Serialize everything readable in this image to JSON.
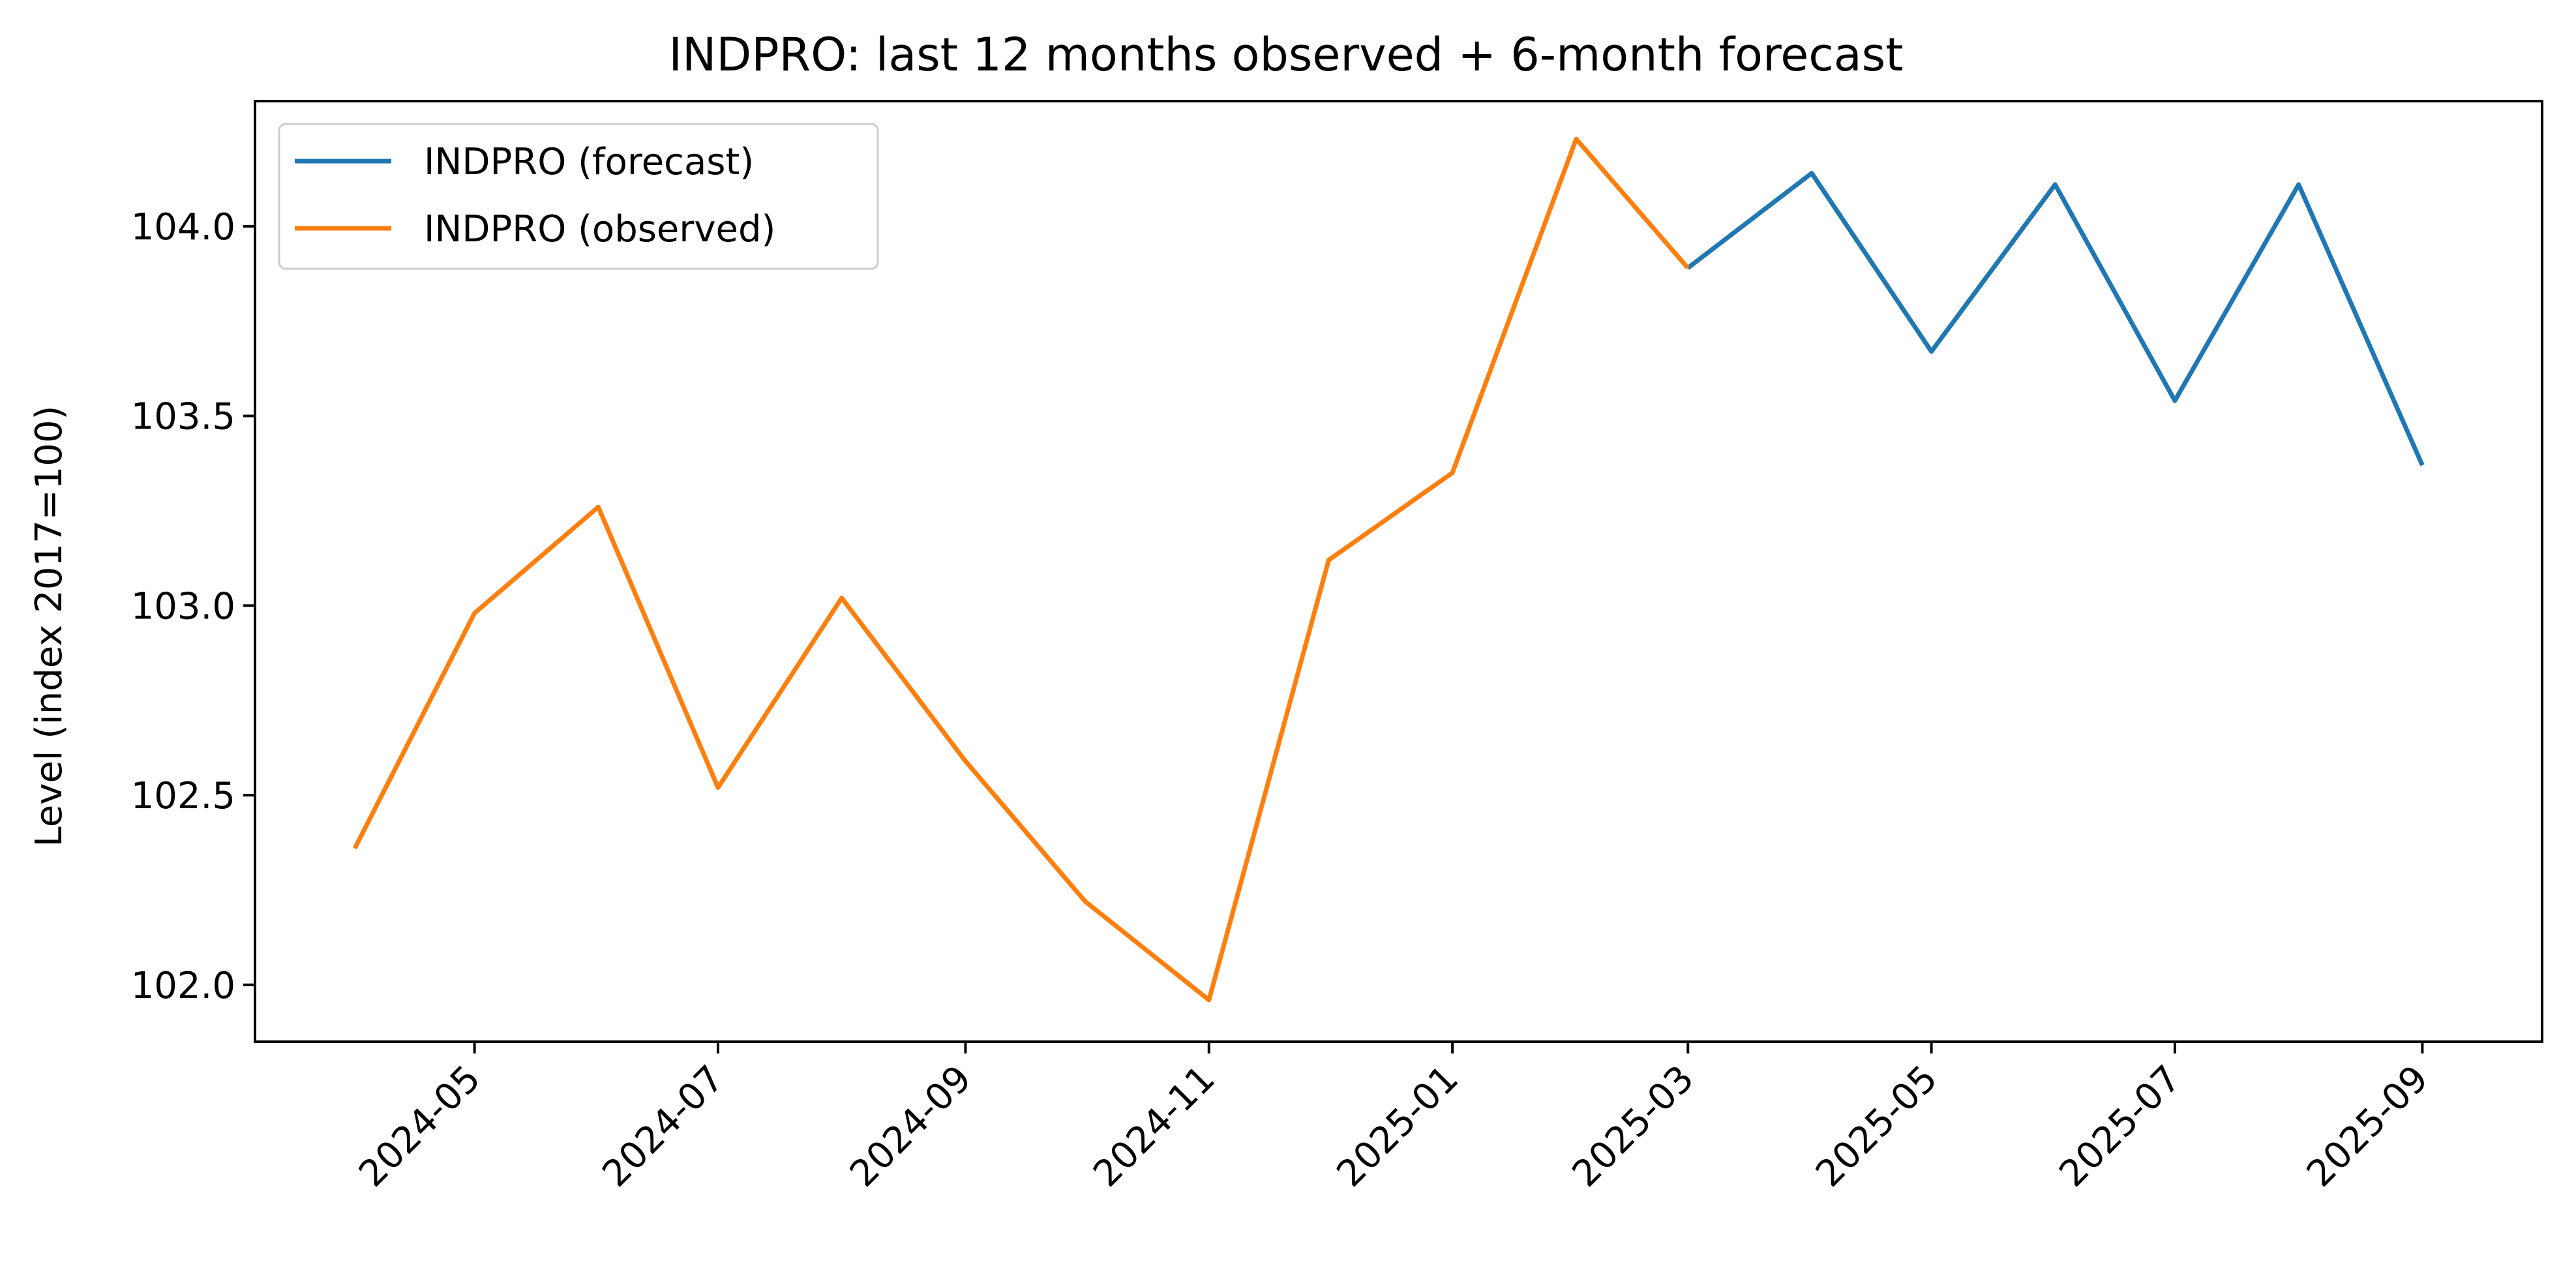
{
  "chart_data": {
    "type": "line",
    "title": "INDPRO: last 12 months observed + 6-month forecast",
    "xlabel": "",
    "ylabel": "Level (index 2017=100)",
    "x_range": [
      "2024-03-07",
      "2025-10-01"
    ],
    "ylim": [
      101.85,
      104.33
    ],
    "yticks": [
      102.0,
      102.5,
      103.0,
      103.5,
      104.0
    ],
    "ytick_labels": [
      "102.0",
      "102.5",
      "103.0",
      "103.5",
      "104.0"
    ],
    "xticks": [
      "2024-05-01",
      "2024-07-01",
      "2024-09-01",
      "2024-11-01",
      "2025-01-01",
      "2025-03-01",
      "2025-05-01",
      "2025-07-01",
      "2025-09-01"
    ],
    "xtick_labels": [
      "2024-05",
      "2024-07",
      "2024-09",
      "2024-11",
      "2025-01",
      "2025-03",
      "2025-05",
      "2025-07",
      "2025-09"
    ],
    "grid": false,
    "legend_position": "top-left",
    "series": [
      {
        "name": "INDPRO (forecast)",
        "color": "#1f77b4",
        "points": [
          {
            "x": "2025-03-01",
            "y": 103.89
          },
          {
            "x": "2025-04-01",
            "y": 104.14
          },
          {
            "x": "2025-05-01",
            "y": 103.67
          },
          {
            "x": "2025-06-01",
            "y": 104.11
          },
          {
            "x": "2025-07-01",
            "y": 103.54
          },
          {
            "x": "2025-08-01",
            "y": 104.11
          },
          {
            "x": "2025-09-01",
            "y": 103.37
          }
        ]
      },
      {
        "name": "INDPRO (observed)",
        "color": "#ff7f0e",
        "points": [
          {
            "x": "2024-04-01",
            "y": 102.36
          },
          {
            "x": "2024-05-01",
            "y": 102.98
          },
          {
            "x": "2024-06-01",
            "y": 103.26
          },
          {
            "x": "2024-07-01",
            "y": 102.52
          },
          {
            "x": "2024-08-01",
            "y": 103.02
          },
          {
            "x": "2024-09-01",
            "y": 102.59
          },
          {
            "x": "2024-10-01",
            "y": 102.22
          },
          {
            "x": "2024-11-01",
            "y": 101.96
          },
          {
            "x": "2024-12-01",
            "y": 103.12
          },
          {
            "x": "2025-01-01",
            "y": 103.35
          },
          {
            "x": "2025-02-01",
            "y": 104.23
          },
          {
            "x": "2025-03-01",
            "y": 103.89
          }
        ]
      }
    ]
  }
}
